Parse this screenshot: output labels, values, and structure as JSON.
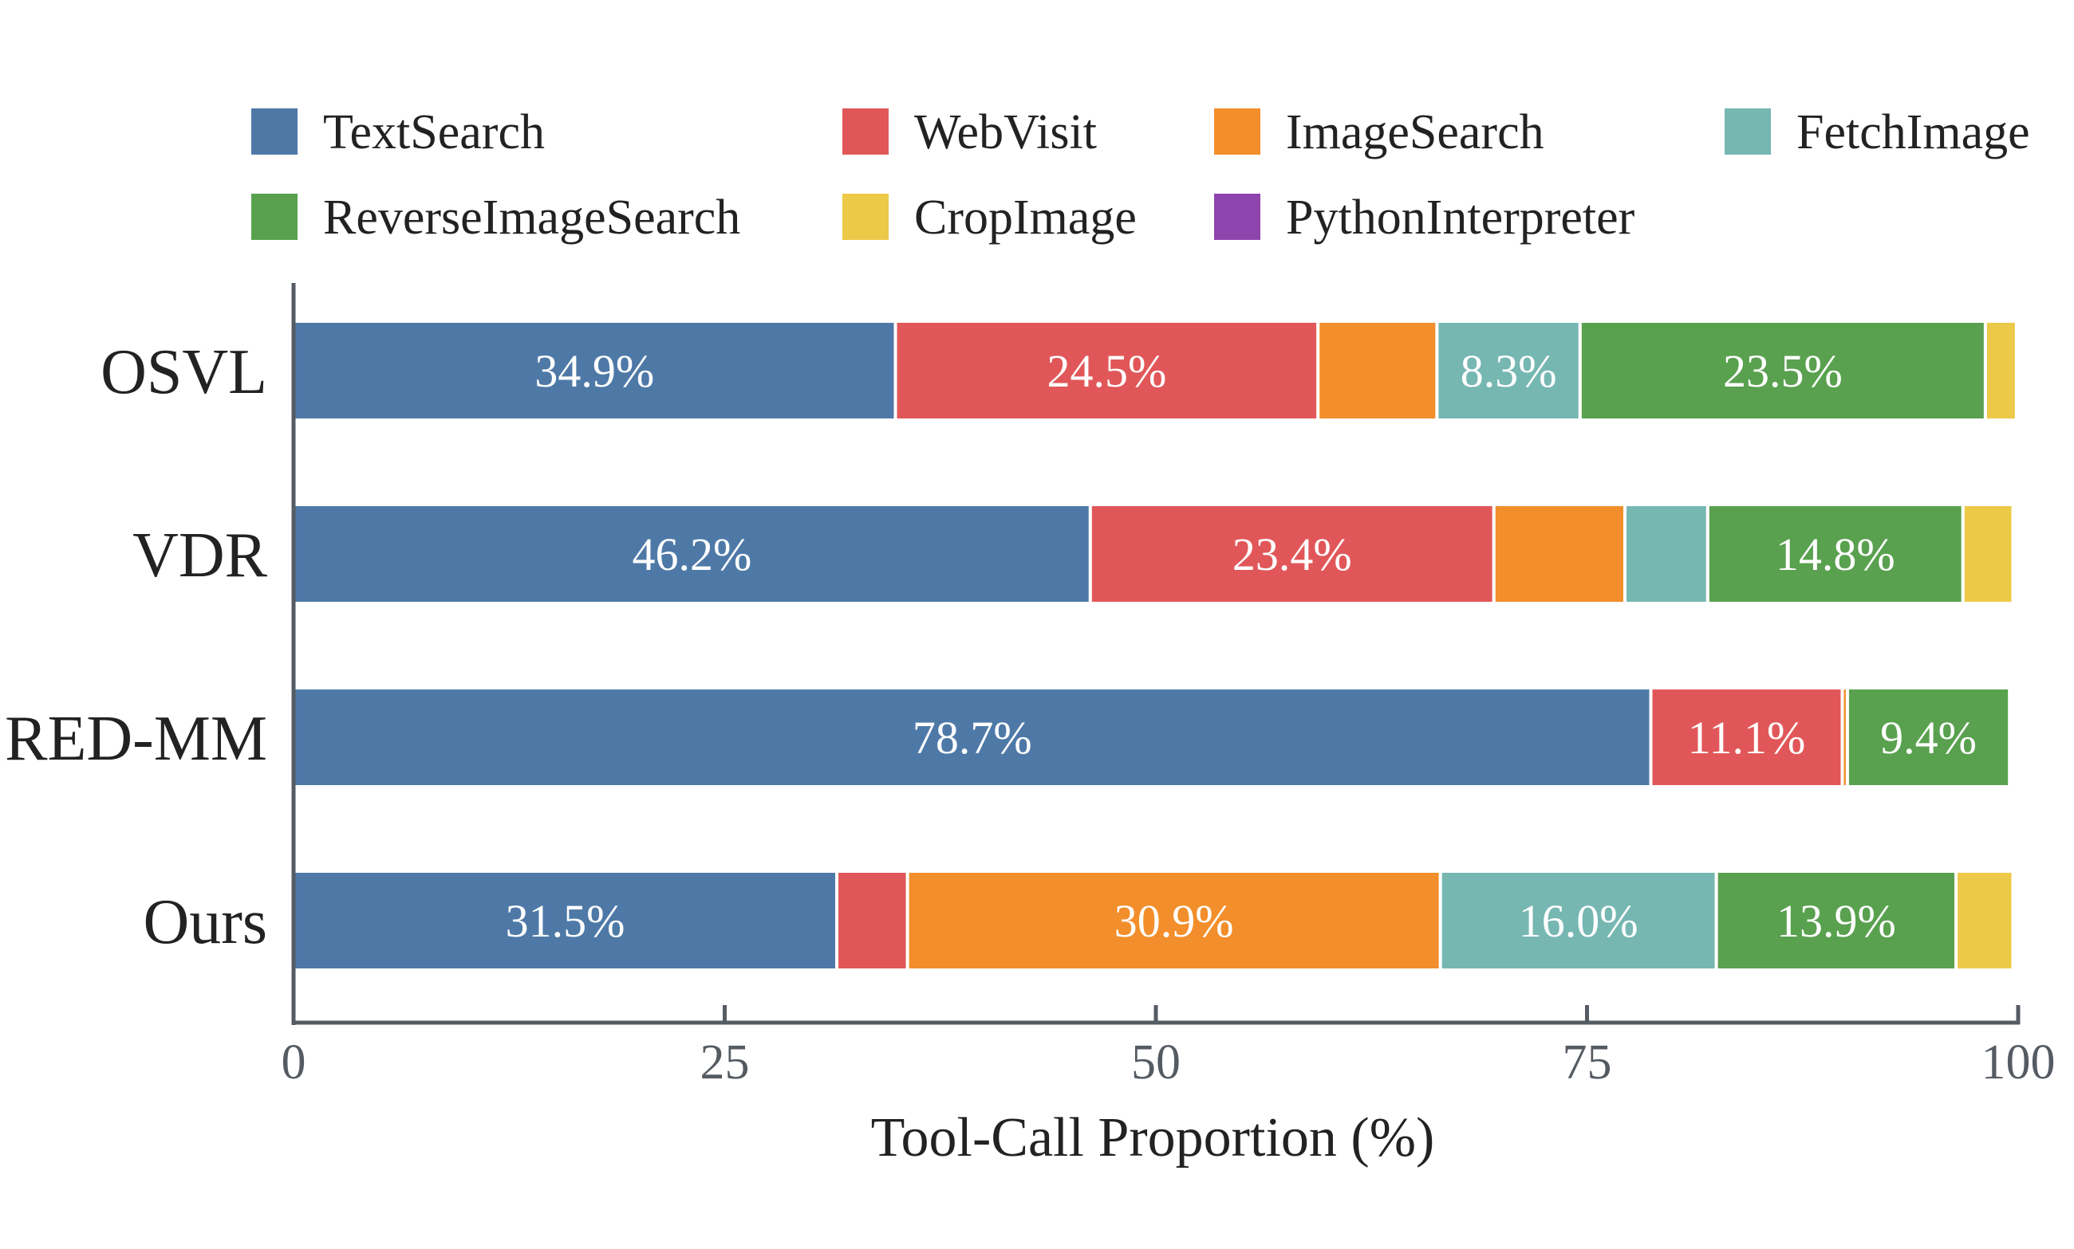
{
  "chart_data": {
    "type": "bar",
    "orientation": "horizontal",
    "stacked": true,
    "title": "",
    "xlabel": "Tool-Call Proportion (%)",
    "ylabel": "",
    "xlim": [
      0,
      100
    ],
    "xticks": [
      0,
      25,
      50,
      75,
      100
    ],
    "xtick_labels": [
      "0",
      "25",
      "50",
      "75",
      "100"
    ],
    "grid": false,
    "legend_position": "top",
    "categories": [
      "OSVL",
      "VDR",
      "RED-MM",
      "Ours"
    ],
    "series": [
      {
        "name": "TextSearch",
        "color": "#4e79a7",
        "values": [
          34.9,
          46.2,
          78.7,
          31.5
        ],
        "labels": [
          "34.9%",
          "46.2%",
          "78.7%",
          "31.5%"
        ]
      },
      {
        "name": "WebVisit",
        "color": "#e15759",
        "values": [
          24.5,
          23.4,
          11.1,
          4.1
        ],
        "labels": [
          "24.5%",
          "23.4%",
          "11.1%",
          ""
        ]
      },
      {
        "name": "ImageSearch",
        "color": "#f28e2b",
        "values": [
          6.9,
          7.6,
          0.3,
          30.9
        ],
        "labels": [
          "",
          "",
          "",
          "30.9%"
        ]
      },
      {
        "name": "FetchImage",
        "color": "#76b7b2",
        "values": [
          8.3,
          4.8,
          0.0,
          16.0
        ],
        "labels": [
          "8.3%",
          "",
          "",
          "16.0%"
        ]
      },
      {
        "name": "ReverseImageSearch",
        "color": "#59a14f",
        "values": [
          23.5,
          14.8,
          9.4,
          13.9
        ],
        "labels": [
          "23.5%",
          "14.8%",
          "9.4%",
          "13.9%"
        ]
      },
      {
        "name": "CropImage",
        "color": "#edc948",
        "values": [
          1.8,
          2.9,
          0.0,
          3.3
        ],
        "labels": [
          "",
          "",
          "",
          ""
        ]
      },
      {
        "name": "PythonInterpreter",
        "color": "#8e44ad",
        "values": [
          0.0,
          0.0,
          0.0,
          0.0
        ],
        "labels": [
          "",
          "",
          "",
          ""
        ]
      }
    ]
  }
}
